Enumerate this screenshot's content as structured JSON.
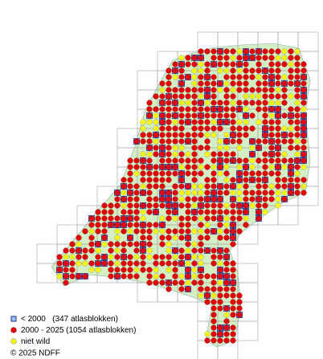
{
  "legend": {
    "items": [
      {
        "label": "< 2000   (347 atlasblokken)"
      },
      {
        "label": "2000 - 2025 (1054 atlasblokken)"
      },
      {
        "label": "niet wild"
      }
    ],
    "copyright": "© 2025 NDFF"
  }
}
